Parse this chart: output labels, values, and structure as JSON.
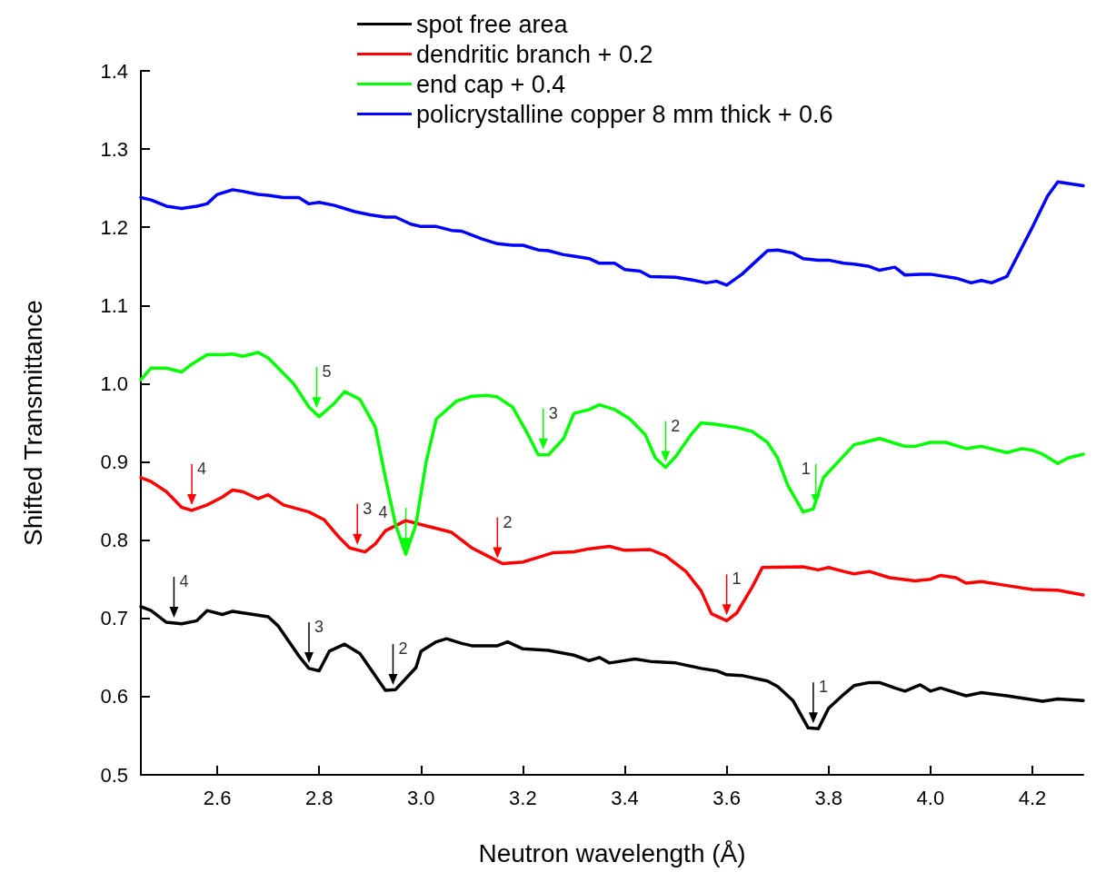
{
  "chart_data": {
    "type": "line",
    "xlabel": "Neutron wavelength (Å)",
    "ylabel": "Shifted Transmittance",
    "xlim": [
      2.45,
      4.3
    ],
    "xticks": [
      2.6,
      2.8,
      {
        "value": 3.0,
        "label": "3.0"
      },
      3.2,
      3.4,
      3.6,
      3.8,
      {
        "value": 4.0,
        "label": "4.0"
      },
      4.2
    ],
    "ylim": [
      0.5,
      1.4
    ],
    "yticks": [
      0.5,
      0.6,
      0.7,
      0.8,
      0.9,
      {
        "value": 1.0,
        "label": "1.0"
      },
      1.1,
      1.2,
      1.3,
      1.4
    ],
    "grid": false,
    "legend": "top",
    "marker": "none",
    "line_style": "solid",
    "series": [
      {
        "name": "spot free area",
        "color": "#000000",
        "x": [
          2.45,
          2.47,
          2.5,
          2.53,
          2.56,
          2.58,
          2.61,
          2.63,
          2.7,
          2.72,
          2.76,
          2.78,
          2.8,
          2.82,
          2.85,
          2.88,
          2.93,
          2.95,
          2.99,
          3.0,
          3.03,
          3.05,
          3.08,
          3.1,
          3.15,
          3.17,
          3.2,
          3.25,
          3.3,
          3.33,
          3.35,
          3.37,
          3.42,
          3.45,
          3.5,
          3.55,
          3.58,
          3.6,
          3.63,
          3.68,
          3.7,
          3.73,
          3.76,
          3.78,
          3.8,
          3.83,
          3.85,
          3.88,
          3.9,
          3.93,
          3.95,
          3.98,
          4.0,
          4.02,
          4.07,
          4.1,
          4.15,
          4.22,
          4.25,
          4.3
        ],
        "values": [
          0.715,
          0.71,
          0.695,
          0.693,
          0.697,
          0.71,
          0.705,
          0.709,
          0.702,
          0.69,
          0.652,
          0.636,
          0.633,
          0.658,
          0.667,
          0.655,
          0.608,
          0.609,
          0.637,
          0.658,
          0.67,
          0.674,
          0.668,
          0.665,
          0.665,
          0.67,
          0.661,
          0.659,
          0.653,
          0.646,
          0.65,
          0.643,
          0.648,
          0.645,
          0.643,
          0.636,
          0.633,
          0.628,
          0.627,
          0.62,
          0.613,
          0.595,
          0.56,
          0.559,
          0.585,
          0.603,
          0.614,
          0.618,
          0.618,
          0.611,
          0.607,
          0.615,
          0.607,
          0.611,
          0.601,
          0.605,
          0.601,
          0.594,
          0.597,
          0.595
        ]
      },
      {
        "name": "dendritic branch + 0.2",
        "color": "#ff0000",
        "x": [
          2.45,
          2.47,
          2.5,
          2.53,
          2.55,
          2.58,
          2.61,
          2.63,
          2.65,
          2.68,
          2.7,
          2.73,
          2.78,
          2.81,
          2.84,
          2.86,
          2.89,
          2.91,
          2.93,
          2.97,
          3.0,
          3.03,
          3.06,
          3.1,
          3.13,
          3.16,
          3.2,
          3.23,
          3.26,
          3.3,
          3.33,
          3.37,
          3.4,
          3.45,
          3.48,
          3.52,
          3.55,
          3.57,
          3.6,
          3.62,
          3.65,
          3.67,
          3.75,
          3.78,
          3.8,
          3.83,
          3.85,
          3.88,
          3.92,
          3.97,
          4.0,
          4.02,
          4.05,
          4.07,
          4.1,
          4.15,
          4.2,
          4.25,
          4.3
        ],
        "values": [
          0.88,
          0.875,
          0.862,
          0.842,
          0.838,
          0.845,
          0.855,
          0.864,
          0.862,
          0.853,
          0.858,
          0.845,
          0.836,
          0.826,
          0.803,
          0.79,
          0.785,
          0.795,
          0.812,
          0.825,
          0.82,
          0.815,
          0.81,
          0.79,
          0.78,
          0.77,
          0.772,
          0.778,
          0.784,
          0.785,
          0.789,
          0.792,
          0.787,
          0.788,
          0.78,
          0.76,
          0.735,
          0.706,
          0.697,
          0.707,
          0.74,
          0.765,
          0.766,
          0.762,
          0.765,
          0.76,
          0.757,
          0.76,
          0.752,
          0.748,
          0.75,
          0.755,
          0.752,
          0.745,
          0.747,
          0.742,
          0.737,
          0.736,
          0.73
        ]
      },
      {
        "name": "end cap + 0.4",
        "color": "#00ff00",
        "x": [
          2.45,
          2.47,
          2.5,
          2.53,
          2.55,
          2.58,
          2.61,
          2.63,
          2.65,
          2.68,
          2.7,
          2.75,
          2.78,
          2.8,
          2.83,
          2.85,
          2.88,
          2.91,
          2.93,
          2.95,
          2.97,
          2.99,
          3.01,
          3.03,
          3.07,
          3.1,
          3.13,
          3.15,
          3.18,
          3.21,
          3.23,
          3.25,
          3.28,
          3.3,
          3.33,
          3.35,
          3.38,
          3.41,
          3.44,
          3.46,
          3.48,
          3.5,
          3.53,
          3.55,
          3.58,
          3.62,
          3.65,
          3.68,
          3.7,
          3.72,
          3.75,
          3.77,
          3.79,
          3.85,
          3.87,
          3.9,
          3.95,
          3.97,
          4.0,
          4.03,
          4.07,
          4.1,
          4.15,
          4.18,
          4.2,
          4.22,
          4.25,
          4.27,
          4.3
        ],
        "values": [
          1.005,
          1.02,
          1.02,
          1.015,
          1.025,
          1.037,
          1.037,
          1.038,
          1.035,
          1.04,
          1.033,
          1.0,
          0.97,
          0.958,
          0.975,
          0.99,
          0.98,
          0.945,
          0.88,
          0.82,
          0.782,
          0.82,
          0.9,
          0.955,
          0.978,
          0.984,
          0.985,
          0.983,
          0.97,
          0.935,
          0.909,
          0.909,
          0.93,
          0.962,
          0.967,
          0.973,
          0.967,
          0.955,
          0.935,
          0.905,
          0.893,
          0.907,
          0.935,
          0.95,
          0.948,
          0.944,
          0.939,
          0.925,
          0.905,
          0.87,
          0.836,
          0.84,
          0.88,
          0.922,
          0.925,
          0.93,
          0.92,
          0.92,
          0.925,
          0.925,
          0.917,
          0.92,
          0.912,
          0.917,
          0.915,
          0.91,
          0.898,
          0.905,
          0.91
        ]
      },
      {
        "name": "policrystalline copper 8 mm thick + 0.6",
        "color": "#0000ff",
        "x": [
          2.45,
          2.47,
          2.5,
          2.53,
          2.56,
          2.58,
          2.6,
          2.63,
          2.65,
          2.68,
          2.7,
          2.73,
          2.76,
          2.78,
          2.8,
          2.83,
          2.87,
          2.9,
          2.93,
          2.95,
          2.98,
          3.0,
          3.03,
          3.06,
          3.08,
          3.12,
          3.15,
          3.18,
          3.2,
          3.23,
          3.25,
          3.28,
          3.3,
          3.33,
          3.35,
          3.38,
          3.4,
          3.43,
          3.45,
          3.5,
          3.53,
          3.56,
          3.58,
          3.6,
          3.63,
          3.66,
          3.68,
          3.7,
          3.73,
          3.75,
          3.78,
          3.8,
          3.83,
          3.85,
          3.88,
          3.9,
          3.93,
          3.95,
          3.98,
          4.0,
          4.05,
          4.08,
          4.1,
          4.12,
          4.15,
          4.2,
          4.23,
          4.25,
          4.3
        ],
        "values": [
          1.238,
          1.235,
          1.227,
          1.224,
          1.227,
          1.23,
          1.242,
          1.248,
          1.246,
          1.242,
          1.241,
          1.238,
          1.238,
          1.23,
          1.232,
          1.228,
          1.22,
          1.216,
          1.213,
          1.213,
          1.204,
          1.201,
          1.201,
          1.196,
          1.195,
          1.185,
          1.179,
          1.177,
          1.177,
          1.171,
          1.17,
          1.165,
          1.163,
          1.16,
          1.154,
          1.154,
          1.146,
          1.144,
          1.137,
          1.136,
          1.133,
          1.129,
          1.131,
          1.126,
          1.14,
          1.158,
          1.17,
          1.171,
          1.167,
          1.16,
          1.158,
          1.158,
          1.154,
          1.153,
          1.15,
          1.145,
          1.149,
          1.139,
          1.14,
          1.14,
          1.135,
          1.129,
          1.132,
          1.129,
          1.137,
          1.2,
          1.24,
          1.258,
          1.253
        ]
      }
    ],
    "annotations": [
      {
        "text": "4",
        "x": 2.515,
        "y": 0.694
      },
      {
        "text": "3",
        "x": 2.78,
        "y": 0.636
      },
      {
        "text": "2",
        "x": 2.945,
        "y": 0.608
      },
      {
        "text": "1",
        "x": 3.77,
        "y": 0.559
      },
      {
        "text": "4",
        "x": 2.55,
        "y": 0.838
      },
      {
        "text": "3",
        "x": 2.875,
        "y": 0.787
      },
      {
        "text": "2",
        "x": 3.15,
        "y": 0.77
      },
      {
        "text": "1",
        "x": 3.6,
        "y": 0.697
      },
      {
        "text": "5",
        "x": 2.795,
        "y": 0.962
      },
      {
        "text": "4",
        "x": 2.97,
        "y": 0.782
      },
      {
        "text": "3",
        "x": 3.24,
        "y": 0.909
      },
      {
        "text": "2",
        "x": 3.48,
        "y": 0.893
      },
      {
        "text": "1",
        "x": 3.775,
        "y": 0.838
      }
    ]
  }
}
